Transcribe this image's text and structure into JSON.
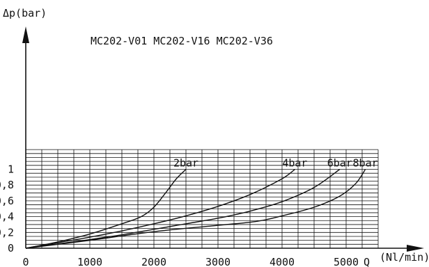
{
  "chart_data": {
    "type": "line",
    "title": "MC202-V01   MC202-V16   MC202-V36",
    "ylabel": "Δp(bar)",
    "xlabel": "Q (Nl/min)",
    "xlabel_q": "Q",
    "xlabel_unit": "(Nl/min)",
    "xlim": [
      0,
      5500
    ],
    "ylim": [
      0,
      1.25
    ],
    "x_ticks": [
      {
        "value": 0,
        "label": "0"
      },
      {
        "value": 1000,
        "label": "1000"
      },
      {
        "value": 2000,
        "label": "2000"
      },
      {
        "value": 3000,
        "label": "3000"
      },
      {
        "value": 4000,
        "label": "4000"
      },
      {
        "value": 5000,
        "label": "5000"
      }
    ],
    "y_ticks": [
      {
        "value": 0,
        "label": "0"
      },
      {
        "value": 0.2,
        "label": "0,2"
      },
      {
        "value": 0.4,
        "label": "0,4"
      },
      {
        "value": 0.6,
        "label": "0,6"
      },
      {
        "value": 0.8,
        "label": "0,8"
      },
      {
        "value": 1,
        "label": "1"
      }
    ],
    "grid": true,
    "series": [
      {
        "name": "2bar",
        "x": [
          0,
          500,
          1000,
          1500,
          1800,
          2000,
          2200,
          2350,
          2500
        ],
        "y": [
          0,
          0.08,
          0.18,
          0.31,
          0.4,
          0.52,
          0.72,
          0.88,
          1.0
        ]
      },
      {
        "name": "4bar",
        "x": [
          0,
          500,
          1000,
          1500,
          2000,
          2500,
          3000,
          3500,
          4000,
          4200
        ],
        "y": [
          0,
          0.07,
          0.14,
          0.22,
          0.31,
          0.41,
          0.53,
          0.68,
          0.88,
          1.0
        ]
      },
      {
        "name": "6bar",
        "x": [
          0,
          500,
          1000,
          1500,
          2000,
          2500,
          3000,
          3500,
          4000,
          4500,
          4900
        ],
        "y": [
          0,
          0.055,
          0.11,
          0.17,
          0.24,
          0.31,
          0.38,
          0.47,
          0.59,
          0.77,
          1.0
        ]
      },
      {
        "name": "8bar",
        "x": [
          0,
          1000,
          2000,
          3000,
          3600,
          4000,
          4500,
          4900,
          5150,
          5300
        ],
        "y": [
          0,
          0.1,
          0.21,
          0.29,
          0.34,
          0.41,
          0.52,
          0.66,
          0.82,
          1.0
        ]
      }
    ]
  }
}
